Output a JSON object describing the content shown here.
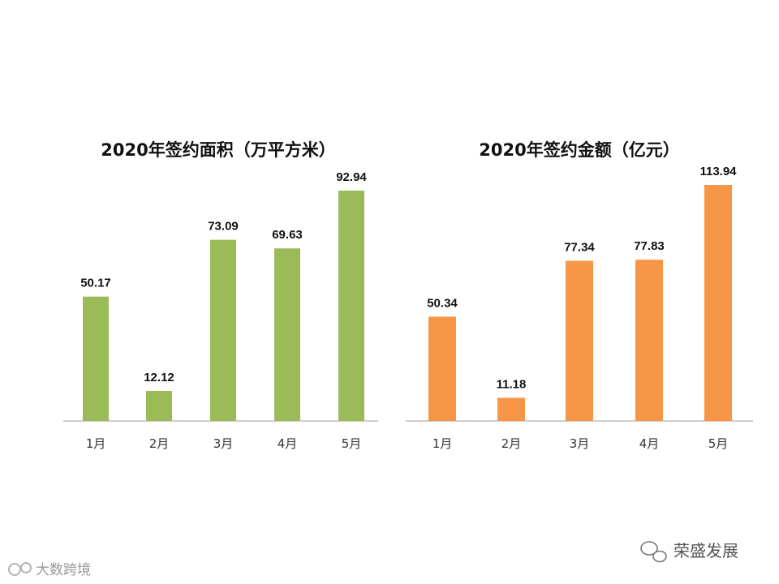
{
  "chart_data": [
    {
      "type": "bar",
      "title": "2020年签约面积（万平方米）",
      "categories": [
        "1月",
        "2月",
        "3月",
        "4月",
        "5月"
      ],
      "values": [
        50.17,
        12.12,
        73.09,
        69.63,
        92.94
      ],
      "value_labels": [
        "50.17",
        "12.12",
        "73.09",
        "69.63",
        "92.94"
      ],
      "color": "#9bbb59",
      "grid": false,
      "legend": "none"
    },
    {
      "type": "bar",
      "title": "2020年签约金额（亿元）",
      "categories": [
        "1月",
        "2月",
        "3月",
        "4月",
        "5月"
      ],
      "values": [
        50.34,
        11.18,
        77.34,
        77.83,
        113.94
      ],
      "value_labels": [
        "50.34",
        "11.18",
        "77.34",
        "77.83",
        "113.94"
      ],
      "color": "#f79646",
      "grid": false,
      "legend": "none"
    }
  ],
  "watermarks": {
    "left": "大数跨境",
    "right": "荣盛发展"
  }
}
